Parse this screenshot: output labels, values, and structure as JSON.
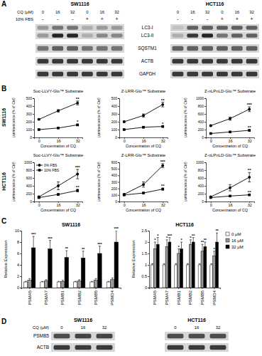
{
  "panel_labels": [
    "A",
    "B",
    "C",
    "D"
  ],
  "blot_A": {
    "cq_label": "CQ (µM)",
    "fbs_label": "10% FBS",
    "panels": [
      {
        "title": "SW1116",
        "cq": [
          0,
          16,
          32,
          0,
          16,
          32
        ],
        "fbs": [
          "-",
          "-",
          "-",
          "+",
          "+",
          "+"
        ]
      },
      {
        "title": "HCT116",
        "cq": [
          0,
          16,
          32,
          0,
          16,
          32
        ],
        "fbs": [
          "-",
          "-",
          "-",
          "+",
          "+",
          "+"
        ]
      }
    ],
    "rows": [
      {
        "label": "LC3-I",
        "intensity": [
          [
            0.3,
            0.5,
            0.5,
            0.2,
            0.3,
            0.3
          ],
          [
            0.1,
            0.6,
            0.6,
            0.6,
            0.6,
            0.6
          ]
        ]
      },
      {
        "label": "LC3-II",
        "intensity": [
          [
            0.3,
            0.9,
            0.9,
            0.2,
            0.4,
            0.4
          ],
          [
            0.2,
            0.8,
            0.9,
            0.5,
            0.6,
            0.6
          ]
        ]
      },
      {
        "label": "SQSTM1",
        "intensity": [
          [
            0.5,
            0.6,
            0.6,
            0.5,
            0.5,
            0.5
          ],
          [
            0.6,
            0.6,
            0.6,
            0.6,
            0.6,
            0.6
          ]
        ]
      },
      {
        "label": "ACTB",
        "intensity": [
          [
            0.8,
            0.8,
            0.8,
            0.8,
            0.8,
            0.8
          ],
          [
            0.8,
            0.8,
            0.8,
            0.8,
            0.8,
            0.8
          ]
        ]
      },
      {
        "label": "GAPDH",
        "intensity": [
          [
            0.8,
            0.8,
            0.8,
            0.8,
            0.8,
            0.8
          ],
          [
            0.8,
            0.8,
            0.8,
            0.8,
            0.8,
            0.8
          ]
        ]
      }
    ]
  },
  "panel_B": {
    "row_labels": [
      "SW1116",
      "HCT116"
    ]
  },
  "chart_data": [
    {
      "type": "line",
      "title": "Suc-LLVY-Glo™ Substrate",
      "x_label": "Concentration of CQ",
      "y_label": "Luminescence (% of Ctrl)",
      "x": [
        0,
        16,
        32
      ],
      "xlim": [
        -4,
        36
      ],
      "xticks": [
        0,
        16,
        32
      ],
      "ylim": [
        0,
        500
      ],
      "yticks": [
        0,
        100,
        200,
        300,
        400,
        500
      ],
      "series": [
        {
          "color": "#000000",
          "marker": "circle",
          "values": [
            230,
            340,
            440
          ],
          "errors": [
            5,
            15,
            25
          ],
          "significance": [
            null,
            null,
            "**"
          ]
        },
        {
          "color": "#000000",
          "marker": "square",
          "values": [
            100,
            120,
            160
          ],
          "errors": [
            5,
            8,
            10
          ],
          "significance": [
            null,
            null,
            "*"
          ]
        }
      ]
    },
    {
      "type": "line",
      "title": "Z-LRR-Glo™ Substrate",
      "x_label": "Concentration of CQ",
      "y_label": "Luminescence (% of Ctrl)",
      "x": [
        0,
        16,
        32
      ],
      "xlim": [
        -4,
        36
      ],
      "xticks": [
        0,
        16,
        32
      ],
      "ylim": [
        0,
        500
      ],
      "yticks": [
        0,
        100,
        200,
        300,
        400,
        500
      ],
      "series": [
        {
          "color": "#000000",
          "marker": "circle",
          "values": [
            200,
            280,
            420
          ],
          "errors": [
            10,
            20,
            30
          ],
          "significance": [
            null,
            null,
            "**"
          ]
        },
        {
          "color": "#000000",
          "marker": "square",
          "values": [
            100,
            130,
            140
          ],
          "errors": [
            5,
            10,
            10
          ],
          "significance": [
            null,
            null,
            "*"
          ]
        }
      ]
    },
    {
      "type": "line",
      "title": "Z-nLPnLD-Glo™ Substrate",
      "x_label": "Concentration of CQ",
      "y_label": "Luminescence (% of Ctrl)",
      "x": [
        0,
        16,
        32
      ],
      "xlim": [
        -4,
        36
      ],
      "xticks": [
        0,
        16,
        32
      ],
      "ylim": [
        0,
        1000
      ],
      "yticks": [
        0,
        200,
        400,
        600,
        800,
        1000
      ],
      "series": [
        {
          "color": "#000000",
          "marker": "circle",
          "values": [
            300,
            480,
            720
          ],
          "errors": [
            20,
            40,
            60
          ],
          "significance": [
            null,
            null,
            "***"
          ]
        },
        {
          "color": "#000000",
          "marker": "square",
          "values": [
            100,
            140,
            180
          ],
          "errors": [
            10,
            15,
            15
          ],
          "significance": [
            null,
            null,
            "**"
          ]
        }
      ]
    },
    {
      "type": "line",
      "title": "Suc-LLVY-Glo™ Substrate",
      "x_label": "Concentration of CQ",
      "y_label": "Luminescence (% of Ctrl)",
      "x": [
        0,
        16,
        32
      ],
      "xlim": [
        -4,
        36
      ],
      "xticks": [
        0,
        16,
        32
      ],
      "ylim": [
        0,
        1000
      ],
      "yticks": [
        0,
        200,
        400,
        600,
        800,
        1000
      ],
      "legend": "top-left",
      "series": [
        {
          "name": "0% FBS",
          "color": "#000000",
          "marker": "circle",
          "values": [
            120,
            400,
            700
          ],
          "errors": [
            20,
            100,
            120
          ],
          "significance": [
            null,
            null,
            "***"
          ]
        },
        {
          "name": "10% FBS",
          "color": "#000000",
          "marker": "square",
          "values": [
            100,
            180,
            280
          ],
          "errors": [
            10,
            20,
            30
          ],
          "significance": [
            null,
            null,
            "**"
          ]
        }
      ]
    },
    {
      "type": "line",
      "title": "Z-LRR-Glo™ Substrate",
      "x_label": "Concentration of CQ",
      "y_label": "Luminescence (% of Ctrl)",
      "x": [
        0,
        16,
        32
      ],
      "xlim": [
        -4,
        36
      ],
      "xticks": [
        0,
        16,
        32
      ],
      "ylim": [
        0,
        600
      ],
      "yticks": [
        0,
        100,
        200,
        300,
        400,
        500,
        600
      ],
      "series": [
        {
          "color": "#000000",
          "marker": "circle",
          "values": [
            110,
            260,
            550
          ],
          "errors": [
            10,
            40,
            30
          ],
          "significance": [
            null,
            null,
            "***"
          ]
        },
        {
          "color": "#000000",
          "marker": "square",
          "values": [
            100,
            130,
            190
          ],
          "errors": [
            5,
            10,
            15
          ],
          "significance": [
            null,
            null,
            "**"
          ]
        }
      ]
    },
    {
      "type": "line",
      "title": "Z-nLPnLD-Glo™ Substrate",
      "x_label": "Concentration of CQ",
      "y_label": "Luminescence (% of Ctrl)",
      "x": [
        0,
        16,
        32
      ],
      "xlim": [
        -4,
        36
      ],
      "xticks": [
        0,
        16,
        32
      ],
      "ylim": [
        0,
        1000
      ],
      "yticks": [
        0,
        200,
        400,
        600,
        800,
        1000
      ],
      "series": [
        {
          "color": "#000000",
          "marker": "circle",
          "values": [
            120,
            350,
            620
          ],
          "errors": [
            10,
            80,
            120
          ],
          "significance": [
            null,
            null,
            "**"
          ]
        },
        {
          "color": "#000000",
          "marker": "square",
          "values": [
            100,
            140,
            170
          ],
          "errors": [
            5,
            10,
            15
          ],
          "significance": [
            null,
            null,
            "**"
          ]
        }
      ]
    },
    {
      "type": "bar",
      "title": "SW1116",
      "y_label": "Relative Expression",
      "categories": [
        "PSMA5",
        "PSMA7",
        "PSMB1",
        "PSMB2",
        "PSMB5",
        "PSMD4"
      ],
      "ylim": [
        0,
        10
      ],
      "yticks": [
        0,
        2,
        4,
        6,
        8,
        10
      ],
      "series": [
        {
          "color": "#ffffff",
          "values": [
            1,
            1,
            1,
            1,
            1,
            1
          ],
          "errors": [
            0.1,
            0.1,
            0.1,
            0.1,
            0.1,
            0.1
          ]
        },
        {
          "color": "#999999",
          "values": [
            1.3,
            1.2,
            1.1,
            1.2,
            1.3,
            1.4
          ],
          "errors": [
            0.3,
            0.2,
            0.2,
            0.2,
            0.3,
            0.3
          ]
        },
        {
          "color": "#000000",
          "values": [
            7,
            6.8,
            5.3,
            5.2,
            6,
            8
          ],
          "errors": [
            2,
            1.5,
            1.2,
            1.2,
            1.3,
            2
          ],
          "significance": [
            "***",
            "***",
            "**",
            "**",
            "***",
            "***"
          ]
        }
      ]
    },
    {
      "type": "bar",
      "title": "HCT116",
      "y_label": "Relative Expression",
      "categories": [
        "PSMA5",
        "PSMA7",
        "PSMB1",
        "PSMB2",
        "PSMB5",
        "PSMD4"
      ],
      "ylim": [
        0,
        2.5
      ],
      "yticks": [
        0,
        0.5,
        1,
        1.5,
        2,
        2.5
      ],
      "legend": "right",
      "series": [
        {
          "name": "0 µM",
          "color": "#ffffff",
          "values": [
            1,
            1,
            1,
            1,
            1,
            1
          ],
          "errors": [
            0.05,
            0.05,
            0.05,
            0.05,
            0.05,
            0.05
          ]
        },
        {
          "name": "16 µM",
          "color": "#999999",
          "values": [
            1.7,
            1.8,
            1.5,
            1.9,
            1.6,
            1.4
          ],
          "errors": [
            0.3,
            0.3,
            0.2,
            0.2,
            0.3,
            0.2
          ],
          "significance": [
            "*",
            "*",
            "*",
            "*",
            "**",
            "*"
          ]
        },
        {
          "name": "32 µM",
          "color": "#000000",
          "values": [
            1.9,
            2,
            1.7,
            2,
            1.8,
            2
          ],
          "errors": [
            0.3,
            0.2,
            0.3,
            0.2,
            0.2,
            0.4
          ],
          "significance": [
            "*",
            "***",
            "*",
            "**",
            "**",
            "**"
          ]
        }
      ]
    }
  ],
  "blot_D": {
    "cq_label": "CQ (µM)",
    "panels": [
      {
        "title": "SW1116",
        "cq": [
          0,
          16,
          32
        ]
      },
      {
        "title": "HCT116",
        "cq": [
          0,
          16,
          32
        ]
      }
    ],
    "rows": [
      {
        "label": "PSMB5",
        "intensity": [
          [
            0.7,
            0.75,
            0.75
          ],
          [
            0.7,
            0.7,
            0.7
          ]
        ]
      },
      {
        "label": "ACTB",
        "intensity": [
          [
            0.8,
            0.8,
            0.8
          ],
          [
            0.8,
            0.8,
            0.8
          ]
        ]
      }
    ]
  }
}
